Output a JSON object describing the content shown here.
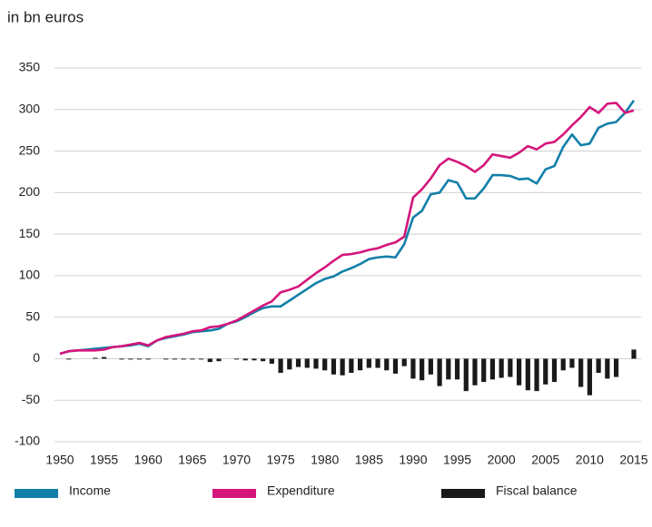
{
  "chart_data": {
    "type": "line",
    "subtitle": "in bn euros",
    "x": [
      1950,
      1951,
      1952,
      1953,
      1954,
      1955,
      1956,
      1957,
      1958,
      1959,
      1960,
      1961,
      1962,
      1963,
      1964,
      1965,
      1966,
      1967,
      1968,
      1969,
      1970,
      1971,
      1972,
      1973,
      1974,
      1975,
      1976,
      1977,
      1978,
      1979,
      1980,
      1981,
      1982,
      1983,
      1984,
      1985,
      1986,
      1987,
      1988,
      1989,
      1990,
      1991,
      1992,
      1993,
      1994,
      1995,
      1996,
      1997,
      1998,
      1999,
      2000,
      2001,
      2002,
      2003,
      2004,
      2005,
      2006,
      2007,
      2008,
      2009,
      2010,
      2011,
      2012,
      2013,
      2014,
      2015
    ],
    "series": [
      {
        "name": "Income",
        "color": "#1380a8",
        "kind": "line",
        "values": [
          6,
          9,
          10,
          11,
          12,
          13,
          14,
          15,
          16,
          18,
          15,
          22,
          25,
          27,
          29,
          32,
          33,
          34,
          36,
          42,
          45,
          50,
          56,
          61,
          63,
          63,
          70,
          77,
          84,
          91,
          96,
          99,
          105,
          109,
          114,
          120,
          122,
          123,
          122,
          138,
          170,
          178,
          198,
          200,
          215,
          212,
          193,
          193,
          205,
          221,
          221,
          220,
          216,
          217,
          211,
          228,
          232,
          255,
          270,
          257,
          259,
          278,
          283,
          285,
          296,
          311
        ]
      },
      {
        "name": "Expenditure",
        "color": "#d4157c",
        "kind": "line",
        "values": [
          6,
          9,
          10,
          10,
          10,
          11,
          14,
          15,
          17,
          19,
          16,
          22,
          26,
          28,
          30,
          33,
          34,
          38,
          39,
          42,
          46,
          52,
          58,
          64,
          69,
          80,
          83,
          87,
          95,
          103,
          110,
          118,
          125,
          126,
          128,
          131,
          133,
          137,
          140,
          147,
          194,
          204,
          217,
          233,
          241,
          237,
          232,
          225,
          233,
          246,
          244,
          242,
          248,
          256,
          252,
          259,
          261,
          270,
          281,
          291,
          303,
          296,
          307,
          308,
          296,
          299
        ]
      },
      {
        "name": "Fiscal balance",
        "color": "#1a1a1a",
        "kind": "bar",
        "values": [
          0,
          -1,
          0,
          0,
          1,
          2,
          0,
          -1,
          -1,
          -1,
          -1,
          0,
          -1,
          -1,
          -1,
          -1,
          -1,
          -4,
          -3,
          0,
          -1,
          -2,
          -2,
          -3,
          -6,
          -17,
          -13,
          -10,
          -11,
          -12,
          -14,
          -19,
          -20,
          -17,
          -14,
          -11,
          -11,
          -14,
          -18,
          -9,
          -24,
          -26,
          -19,
          -33,
          -25,
          -25,
          -39,
          -32,
          -28,
          -25,
          -23,
          -22,
          -32,
          -38,
          -39,
          -31,
          -28,
          -14,
          -11,
          -34,
          -44,
          -17,
          -24,
          -22,
          0,
          11
        ]
      }
    ],
    "xlim": [
      1950,
      2015
    ],
    "xticks": [
      1950,
      1955,
      1960,
      1965,
      1970,
      1975,
      1980,
      1985,
      1990,
      1995,
      2000,
      2005,
      2010,
      2015
    ],
    "ylim": [
      -100,
      350
    ],
    "yticks": [
      -100,
      -50,
      0,
      50,
      100,
      150,
      200,
      250,
      300,
      350
    ],
    "grid": true
  }
}
